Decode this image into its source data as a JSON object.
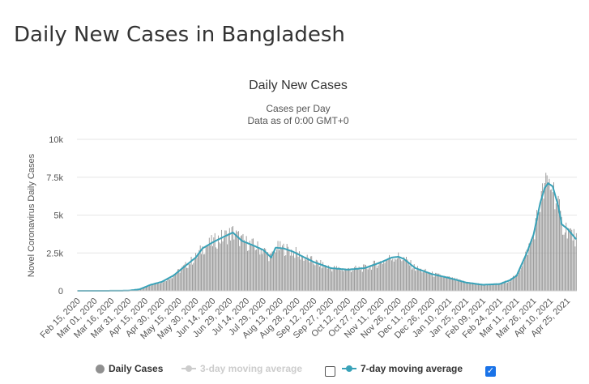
{
  "page": {
    "title": "Daily New Cases in Bangladesh"
  },
  "chart_data": {
    "type": "bar",
    "title": "Daily New Cases",
    "subtitle": "Cases per Day",
    "subtitle2": "Data as of 0:00 GMT+0",
    "ylabel": "Novel Coronavirus Daily Cases",
    "ylim": [
      0,
      10000
    ],
    "yticks": [
      0,
      2500,
      5000,
      7500,
      10000
    ],
    "ytick_labels": [
      "0",
      "2.5k",
      "5k",
      "7.5k",
      "10k"
    ],
    "x_start": "2020-02-15",
    "x_end": "2021-05-03",
    "x_tick_labels": [
      "Feb 15, 2020",
      "Mar 01, 2020",
      "Mar 16, 2020",
      "Mar 31, 2020",
      "Apr 15, 2020",
      "Apr 30, 2020",
      "May 15, 2020",
      "May 30, 2020",
      "Jun 14, 2020",
      "Jun 29, 2020",
      "Jul 14, 2020",
      "Jul 29, 2020",
      "Aug 13, 2020",
      "Aug 28, 2020",
      "Sep 12, 2020",
      "Sep 27, 2020",
      "Oct 12, 2020",
      "Oct 27, 2020",
      "Nov 11, 2020",
      "Nov 26, 2020",
      "Dec 11, 2020",
      "Dec 26, 2020",
      "Jan 10, 2021",
      "Jan 25, 2021",
      "Feb 09, 2021",
      "Feb 24, 2021",
      "Mar 11, 2021",
      "Mar 26, 2021",
      "Apr 10, 2021",
      "Apr 25, 2021"
    ],
    "trend_keypoints": {
      "date": [
        "2020-02-15",
        "2020-03-08",
        "2020-03-31",
        "2020-04-10",
        "2020-04-20",
        "2020-04-30",
        "2020-05-10",
        "2020-05-20",
        "2020-05-30",
        "2020-06-05",
        "2020-06-14",
        "2020-06-22",
        "2020-07-02",
        "2020-07-10",
        "2020-07-20",
        "2020-07-29",
        "2020-08-05",
        "2020-08-09",
        "2020-08-16",
        "2020-08-24",
        "2020-09-01",
        "2020-09-12",
        "2020-09-27",
        "2020-10-12",
        "2020-10-27",
        "2020-11-11",
        "2020-11-20",
        "2020-11-26",
        "2020-12-01",
        "2020-12-11",
        "2020-12-26",
        "2021-01-10",
        "2021-01-25",
        "2021-02-09",
        "2021-02-24",
        "2021-03-05",
        "2021-03-11",
        "2021-03-20",
        "2021-03-26",
        "2021-04-01",
        "2021-04-05",
        "2021-04-08",
        "2021-04-12",
        "2021-04-17",
        "2021-04-20",
        "2021-04-25",
        "2021-05-03"
      ],
      "cases": [
        0,
        0,
        10,
        100,
        400,
        600,
        1000,
        1600,
        2200,
        2800,
        3200,
        3500,
        3850,
        3300,
        3000,
        2700,
        2200,
        2850,
        2800,
        2600,
        2300,
        1900,
        1500,
        1400,
        1500,
        1900,
        2200,
        2250,
        2100,
        1500,
        1100,
        850,
        550,
        400,
        450,
        700,
        1000,
        2500,
        3700,
        5800,
        6800,
        7100,
        6900,
        5600,
        4400,
        4100,
        3400
      ]
    },
    "series": [
      {
        "name": "Daily Cases",
        "color": "#909090",
        "render": "bars"
      },
      {
        "name": "3-day moving average",
        "color": "#cccccc",
        "enabled": false
      },
      {
        "name": "7-day moving average",
        "color": "#39a2b8",
        "enabled": true
      }
    ],
    "grid": "horizontal",
    "legend_position": "bottom"
  }
}
